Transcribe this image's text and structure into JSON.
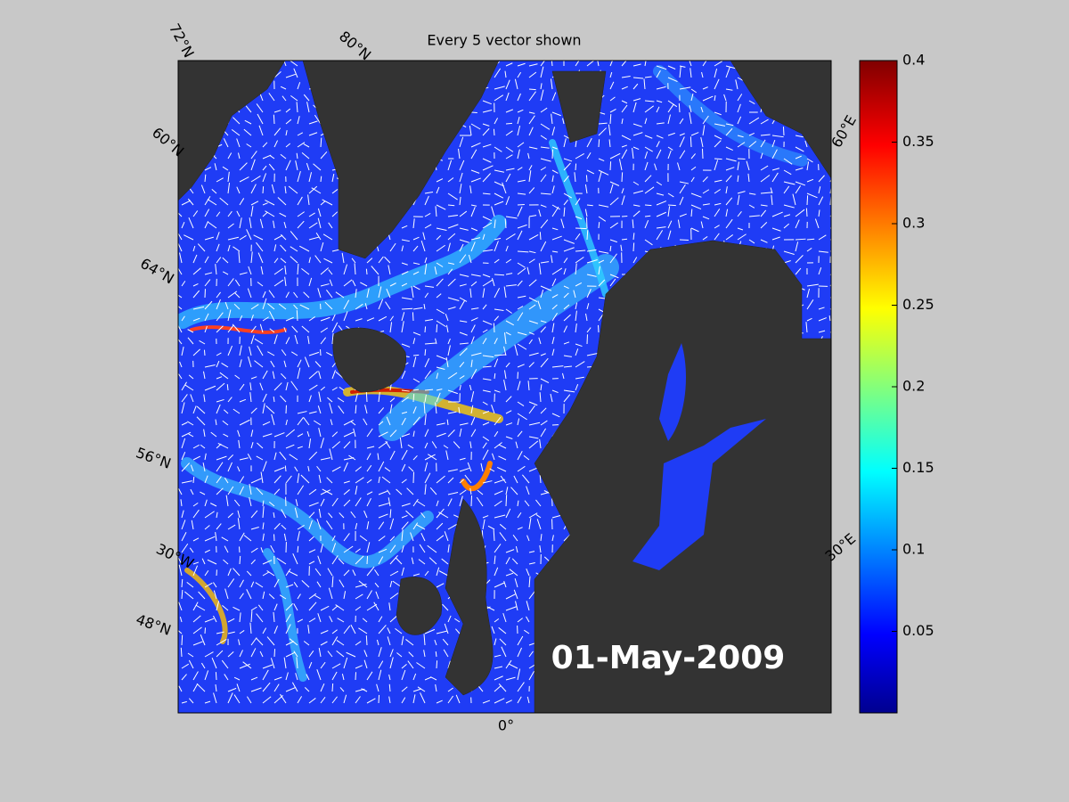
{
  "title": "Every 5 vector shown",
  "date_label": "01-May-2009",
  "graticule_labels": [
    "72°N",
    "80°N",
    "60°N",
    "64°N",
    "56°N",
    "30°W",
    "48°N",
    "0°",
    "60°E",
    "30°E"
  ],
  "colorbar": {
    "lim": [
      0,
      0.4
    ],
    "ticks": [
      0.05,
      0.1,
      0.15,
      0.2,
      0.25,
      0.3,
      0.35,
      0.4
    ]
  }
}
